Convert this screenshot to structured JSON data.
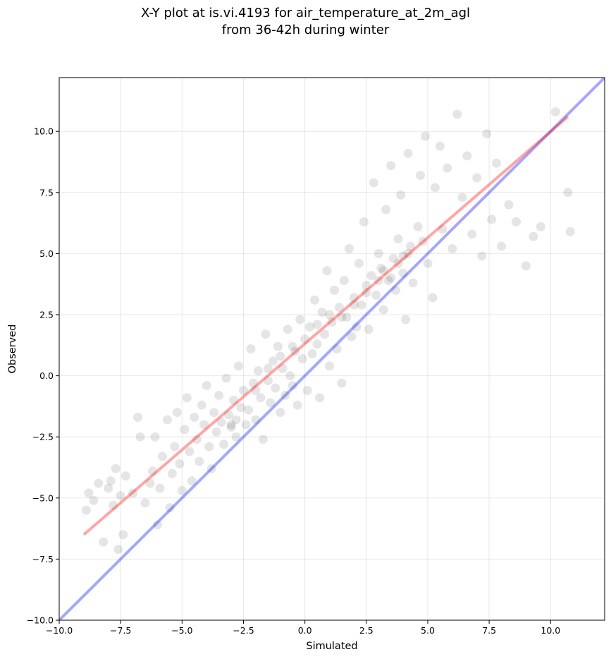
{
  "chart_data": {
    "type": "scatter",
    "title": "X-Y plot at is.vi.4193 for air_temperature_at_2m_agl",
    "subtitle": "from 36-42h during winter",
    "xlabel": "Simulated",
    "ylabel": "Observed",
    "xlim": [
      -10.0,
      12.2
    ],
    "ylim": [
      -10.0,
      12.2
    ],
    "x_ticks": [
      "−10.0",
      "−7.5",
      "−5.0",
      "−2.5",
      "0.0",
      "2.5",
      "5.0",
      "7.5",
      "10.0"
    ],
    "y_ticks": [
      "−10.0",
      "−7.5",
      "−5.0",
      "−2.5",
      "0.0",
      "2.5",
      "5.0",
      "7.5",
      "10.0"
    ],
    "grid": true,
    "point_color": "#000000",
    "point_alpha": 0.1,
    "lines": [
      {
        "role": "one-to-one",
        "color": "#0000ff",
        "x": [
          -10.0,
          12.2
        ],
        "y": [
          -10.0,
          12.2
        ]
      },
      {
        "role": "linear-fit",
        "color": "#ff0000",
        "x": [
          -9.0,
          10.7
        ],
        "y": [
          -6.5,
          10.6
        ]
      }
    ],
    "points": [
      [
        -8.9,
        -5.5
      ],
      [
        -8.8,
        -4.8
      ],
      [
        -8.6,
        -5.1
      ],
      [
        -8.4,
        -4.4
      ],
      [
        -8.2,
        -6.8
      ],
      [
        -8.0,
        -4.6
      ],
      [
        -7.9,
        -4.3
      ],
      [
        -7.8,
        -5.3
      ],
      [
        -7.7,
        -3.8
      ],
      [
        -7.6,
        -7.1
      ],
      [
        -7.5,
        -4.9
      ],
      [
        -7.4,
        -6.5
      ],
      [
        -7.3,
        -4.1
      ],
      [
        -7.0,
        -4.8
      ],
      [
        -6.8,
        -1.7
      ],
      [
        -6.7,
        -2.5
      ],
      [
        -6.5,
        -5.2
      ],
      [
        -6.3,
        -4.4
      ],
      [
        -6.2,
        -3.9
      ],
      [
        -6.1,
        -2.5
      ],
      [
        -6.0,
        -6.1
      ],
      [
        -5.9,
        -4.6
      ],
      [
        -5.8,
        -3.3
      ],
      [
        -5.6,
        -1.8
      ],
      [
        -5.5,
        -5.4
      ],
      [
        -5.4,
        -4.0
      ],
      [
        -5.3,
        -2.9
      ],
      [
        -5.2,
        -1.5
      ],
      [
        -5.1,
        -3.6
      ],
      [
        -5.0,
        -4.7
      ],
      [
        -4.9,
        -2.2
      ],
      [
        -4.8,
        -0.9
      ],
      [
        -4.7,
        -3.1
      ],
      [
        -4.6,
        -4.3
      ],
      [
        -4.5,
        -1.7
      ],
      [
        -4.4,
        -2.6
      ],
      [
        -4.3,
        -3.5
      ],
      [
        -4.2,
        -1.2
      ],
      [
        -4.1,
        -2.0
      ],
      [
        -4.0,
        -0.4
      ],
      [
        -3.9,
        -2.9
      ],
      [
        -3.8,
        -3.8
      ],
      [
        -3.7,
        -1.5
      ],
      [
        -3.6,
        -2.3
      ],
      [
        -3.5,
        -0.8
      ],
      [
        -3.4,
        -1.9
      ],
      [
        -3.3,
        -2.8
      ],
      [
        -3.2,
        -0.1
      ],
      [
        -3.1,
        -1.6
      ],
      [
        -3.0,
        -2.1
      ],
      [
        -2.9,
        -1.0
      ],
      [
        -2.8,
        -2.5
      ],
      [
        -2.7,
        0.4
      ],
      [
        -2.6,
        -1.3
      ],
      [
        -2.5,
        -0.6
      ],
      [
        -2.4,
        -2.0
      ],
      [
        -2.3,
        -1.4
      ],
      [
        -2.2,
        1.1
      ],
      [
        -2.1,
        -0.3
      ],
      [
        -2.0,
        -1.8
      ],
      [
        -1.9,
        0.2
      ],
      [
        -1.8,
        -0.9
      ],
      [
        -1.7,
        -2.6
      ],
      [
        -1.6,
        1.7
      ],
      [
        -1.5,
        -0.2
      ],
      [
        -1.4,
        -1.1
      ],
      [
        -1.3,
        0.6
      ],
      [
        -1.2,
        -0.5
      ],
      [
        -1.1,
        1.2
      ],
      [
        -1.0,
        -1.5
      ],
      [
        -0.9,
        0.3
      ],
      [
        -0.8,
        -0.8
      ],
      [
        -0.7,
        1.9
      ],
      [
        -0.6,
        0.0
      ],
      [
        -0.5,
        -0.4
      ],
      [
        -0.4,
        1.0
      ],
      [
        -0.3,
        -1.2
      ],
      [
        -0.2,
        2.3
      ],
      [
        -0.1,
        0.7
      ],
      [
        0.0,
        1.5
      ],
      [
        0.1,
        -0.6
      ],
      [
        0.2,
        2.0
      ],
      [
        0.3,
        0.9
      ],
      [
        0.4,
        3.1
      ],
      [
        0.5,
        1.3
      ],
      [
        0.6,
        -0.9
      ],
      [
        0.7,
        2.6
      ],
      [
        0.8,
        1.7
      ],
      [
        0.9,
        4.3
      ],
      [
        1.0,
        0.4
      ],
      [
        1.1,
        2.2
      ],
      [
        1.2,
        3.5
      ],
      [
        1.3,
        1.1
      ],
      [
        1.4,
        2.8
      ],
      [
        1.5,
        -0.3
      ],
      [
        1.6,
        3.9
      ],
      [
        1.7,
        2.4
      ],
      [
        1.8,
        5.2
      ],
      [
        1.9,
        1.6
      ],
      [
        2.0,
        3.2
      ],
      [
        2.1,
        2.0
      ],
      [
        2.2,
        4.6
      ],
      [
        2.3,
        2.9
      ],
      [
        2.4,
        6.3
      ],
      [
        2.5,
        3.7
      ],
      [
        2.6,
        1.9
      ],
      [
        2.7,
        4.1
      ],
      [
        2.8,
        7.9
      ],
      [
        2.9,
        3.3
      ],
      [
        3.0,
        5.0
      ],
      [
        3.1,
        4.4
      ],
      [
        3.2,
        2.7
      ],
      [
        3.3,
        6.8
      ],
      [
        3.4,
        3.9
      ],
      [
        3.5,
        8.6
      ],
      [
        3.6,
        4.8
      ],
      [
        3.7,
        3.5
      ],
      [
        3.8,
        5.6
      ],
      [
        3.9,
        7.4
      ],
      [
        4.0,
        4.2
      ],
      [
        4.1,
        2.3
      ],
      [
        4.2,
        9.1
      ],
      [
        4.3,
        5.3
      ],
      [
        4.4,
        3.8
      ],
      [
        4.6,
        6.1
      ],
      [
        4.7,
        8.2
      ],
      [
        4.8,
        5.5
      ],
      [
        4.9,
        9.8
      ],
      [
        5.0,
        4.6
      ],
      [
        5.2,
        3.2
      ],
      [
        5.3,
        7.7
      ],
      [
        5.5,
        9.4
      ],
      [
        5.6,
        6.0
      ],
      [
        5.8,
        8.5
      ],
      [
        6.0,
        5.2
      ],
      [
        6.2,
        10.7
      ],
      [
        6.4,
        7.3
      ],
      [
        6.6,
        9.0
      ],
      [
        6.8,
        5.8
      ],
      [
        7.0,
        8.1
      ],
      [
        7.2,
        4.9
      ],
      [
        7.4,
        9.9
      ],
      [
        7.6,
        6.4
      ],
      [
        7.8,
        8.7
      ],
      [
        8.0,
        5.3
      ],
      [
        8.3,
        7.0
      ],
      [
        8.6,
        6.3
      ],
      [
        9.0,
        4.5
      ],
      [
        9.3,
        5.7
      ],
      [
        9.6,
        6.1
      ],
      [
        10.2,
        10.8
      ],
      [
        10.7,
        7.5
      ],
      [
        10.8,
        5.9
      ],
      [
        -3.0,
        -2.0
      ],
      [
        -2.8,
        -1.8
      ],
      [
        -2.0,
        -0.6
      ],
      [
        -1.5,
        0.3
      ],
      [
        -1.0,
        0.8
      ],
      [
        -0.5,
        1.2
      ],
      [
        0.5,
        2.1
      ],
      [
        1.0,
        2.5
      ],
      [
        1.5,
        2.4
      ],
      [
        2.0,
        2.9
      ],
      [
        2.5,
        3.4
      ],
      [
        3.0,
        3.9
      ],
      [
        3.2,
        4.3
      ],
      [
        3.5,
        4.0
      ],
      [
        3.8,
        4.6
      ],
      [
        4.0,
        4.9
      ],
      [
        4.2,
        5.0
      ]
    ]
  }
}
